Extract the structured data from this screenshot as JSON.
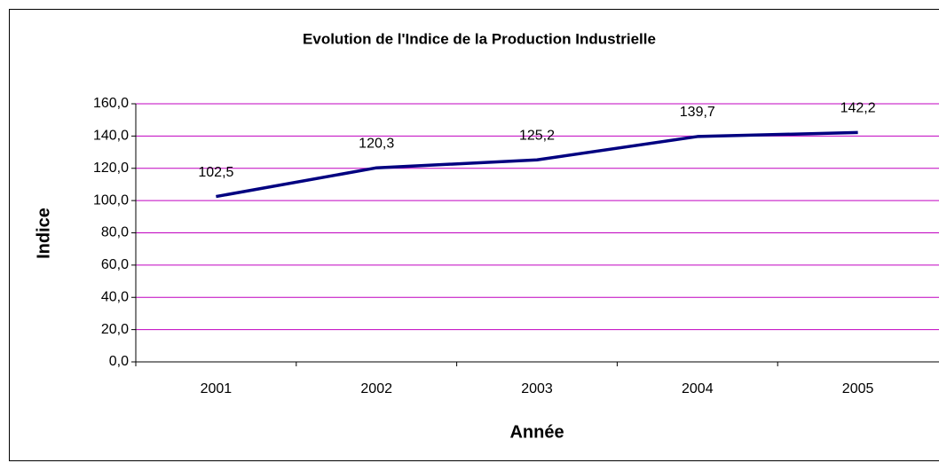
{
  "chart_data": {
    "type": "line",
    "title": "Evolution de l'Indice de la Production Industrielle",
    "x_label": "Année",
    "y_label": "Indice",
    "categories": [
      "2001",
      "2002",
      "2003",
      "2004",
      "2005"
    ],
    "series": [
      {
        "name": "Indice",
        "color": "#000080",
        "values": [
          102.5,
          120.3,
          125.2,
          139.7,
          142.2
        ],
        "value_labels": [
          "102,5",
          "120,3",
          "125,2",
          "139,7",
          "142,2"
        ]
      }
    ],
    "ylim": [
      0,
      160
    ],
    "yticks": [
      {
        "value": 0,
        "label": "0,0"
      },
      {
        "value": 20,
        "label": "20,0"
      },
      {
        "value": 40,
        "label": "40,0"
      },
      {
        "value": 60,
        "label": "60,0"
      },
      {
        "value": 80,
        "label": "80,0"
      },
      {
        "value": 100,
        "label": "100,0"
      },
      {
        "value": 120,
        "label": "120,0"
      },
      {
        "value": 140,
        "label": "140,0"
      },
      {
        "value": 160,
        "label": "160,0"
      }
    ],
    "grid": true,
    "grid_color": "#c000c0"
  }
}
